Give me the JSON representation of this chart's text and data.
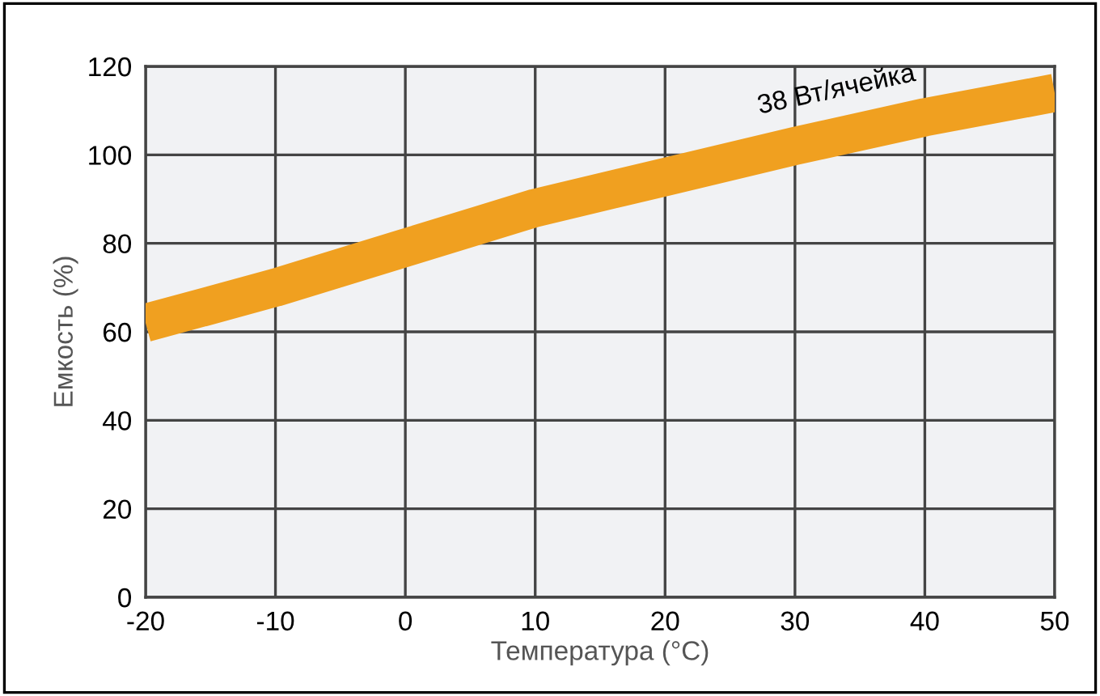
{
  "chart_data": {
    "type": "line",
    "xlabel": "Температура (°C)",
    "ylabel": "Емкость (%)",
    "x": [
      -20,
      -10,
      0,
      10,
      20,
      30,
      40,
      50
    ],
    "series": [
      {
        "color": "#f0a020",
        "values": [
          62,
          70,
          79,
          88,
          95,
          102,
          108.5,
          114
        ]
      }
    ],
    "annotations": [
      "38 Вт/ячейка"
    ],
    "xlim": [
      -20,
      50
    ],
    "ylim": [
      0,
      120
    ],
    "xticks": [
      -20,
      -10,
      0,
      10,
      20,
      30,
      40,
      50
    ],
    "yticks": [
      0,
      20,
      40,
      60,
      80,
      100,
      120
    ],
    "grid": true
  }
}
